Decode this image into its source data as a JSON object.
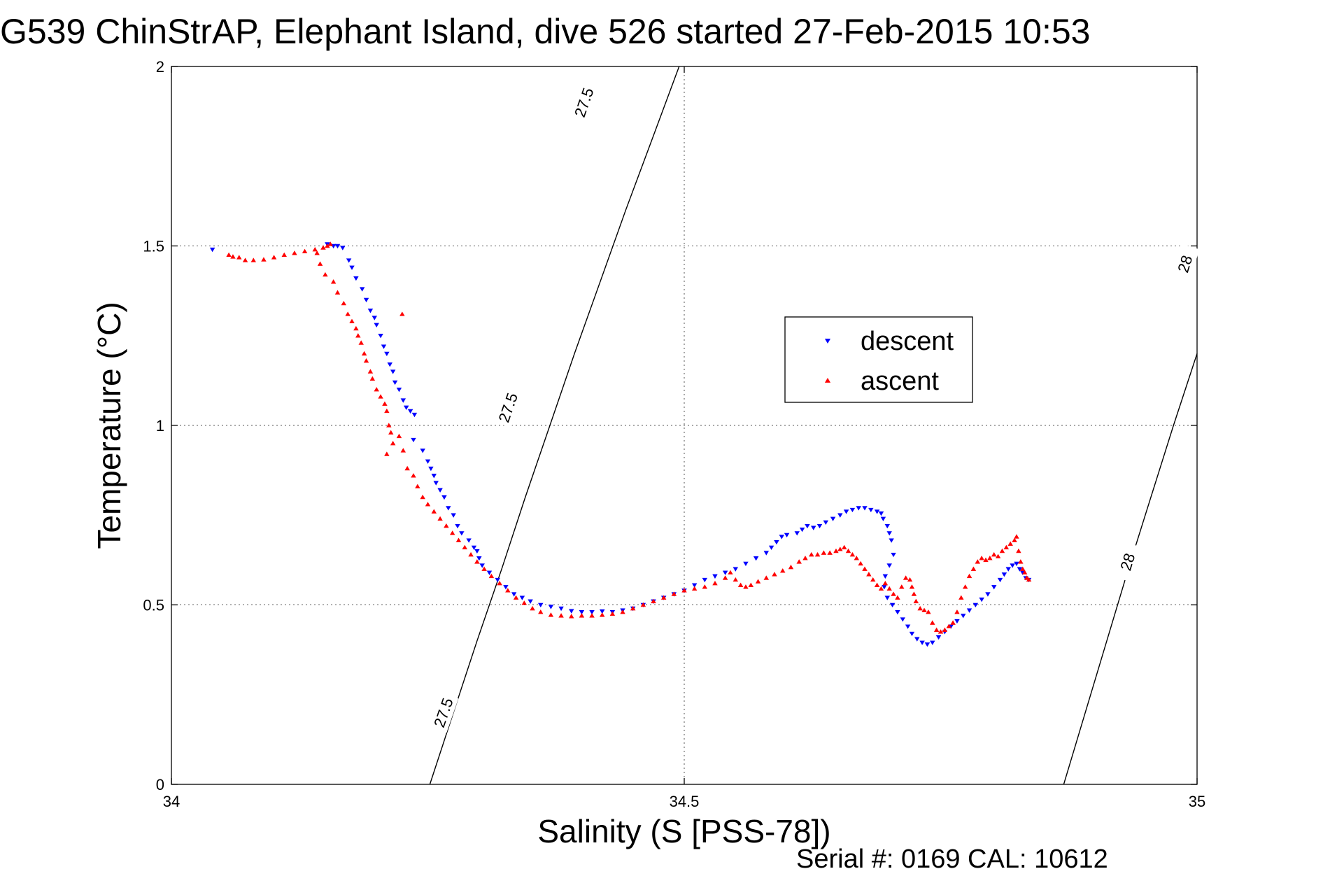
{
  "chart_data": {
    "type": "scatter",
    "title": "G539 ChinStrAP, Elephant Island, dive 526 started 27-Feb-2015 10:53",
    "xlabel": "Salinity (S [PSS-78])",
    "ylabel": "Temperature (°C)",
    "xlim": [
      34,
      35
    ],
    "ylim": [
      0,
      2
    ],
    "xticks": [
      34,
      34.5,
      35
    ],
    "xtick_labels": [
      "34",
      "34.5",
      "35"
    ],
    "yticks": [
      0,
      0.5,
      1,
      1.5,
      2
    ],
    "ytick_labels": [
      "0",
      "0.5",
      "1",
      "1.5",
      "2"
    ],
    "grid": true,
    "legend_position": "upper-right-center",
    "footer": "Serial #: 0169 CAL: 10612",
    "contours": [
      {
        "label": "27.5",
        "points": [
          [
            34.252,
            0.0
          ],
          [
            34.275,
            0.2
          ],
          [
            34.298,
            0.4
          ],
          [
            34.322,
            0.6
          ],
          [
            34.345,
            0.8
          ],
          [
            34.369,
            1.0
          ],
          [
            34.393,
            1.2
          ],
          [
            34.418,
            1.4
          ],
          [
            34.443,
            1.6
          ],
          [
            34.469,
            1.8
          ],
          [
            34.495,
            2.0
          ]
        ],
        "label_positions": [
          [
            34.265,
            0.2
          ],
          [
            34.328,
            1.05
          ],
          [
            34.402,
            1.9
          ]
        ]
      },
      {
        "label": "28",
        "points": [
          [
            34.87,
            0.0
          ],
          [
            34.891,
            0.2
          ],
          [
            34.912,
            0.4
          ],
          [
            34.933,
            0.6
          ],
          [
            34.955,
            0.8
          ],
          [
            34.977,
            1.0
          ],
          [
            35.0,
            1.2
          ]
        ],
        "label_positions": [
          [
            34.932,
            0.62
          ],
          [
            34.988,
            1.45
          ]
        ]
      }
    ],
    "series": [
      {
        "name": "descent",
        "marker": "triangle-down",
        "color": "#0000ff",
        "points": [
          [
            34.04,
            1.49
          ],
          [
            34.152,
            1.505
          ],
          [
            34.158,
            1.5
          ],
          [
            34.162,
            1.5
          ],
          [
            34.167,
            1.495
          ],
          [
            34.173,
            1.46
          ],
          [
            34.176,
            1.44
          ],
          [
            34.18,
            1.41
          ],
          [
            34.186,
            1.38
          ],
          [
            34.19,
            1.35
          ],
          [
            34.194,
            1.32
          ],
          [
            34.198,
            1.3
          ],
          [
            34.2,
            1.28
          ],
          [
            34.204,
            1.25
          ],
          [
            34.207,
            1.22
          ],
          [
            34.21,
            1.2
          ],
          [
            34.213,
            1.17
          ],
          [
            34.216,
            1.15
          ],
          [
            34.218,
            1.12
          ],
          [
            34.222,
            1.1
          ],
          [
            34.226,
            1.07
          ],
          [
            34.229,
            1.05
          ],
          [
            34.233,
            1.04
          ],
          [
            34.237,
            1.03
          ],
          [
            34.236,
            0.96
          ],
          [
            34.245,
            0.93
          ],
          [
            34.25,
            0.9
          ],
          [
            34.253,
            0.88
          ],
          [
            34.256,
            0.86
          ],
          [
            34.258,
            0.84
          ],
          [
            34.262,
            0.82
          ],
          [
            34.266,
            0.8
          ],
          [
            34.27,
            0.77
          ],
          [
            34.275,
            0.75
          ],
          [
            34.279,
            0.72
          ],
          [
            34.283,
            0.7
          ],
          [
            34.29,
            0.68
          ],
          [
            34.295,
            0.66
          ],
          [
            34.298,
            0.65
          ],
          [
            34.3,
            0.63
          ],
          [
            34.303,
            0.61
          ],
          [
            34.31,
            0.59
          ],
          [
            34.318,
            0.57
          ],
          [
            34.326,
            0.55
          ],
          [
            34.334,
            0.53
          ],
          [
            34.342,
            0.52
          ],
          [
            34.35,
            0.51
          ],
          [
            34.36,
            0.5
          ],
          [
            34.37,
            0.495
          ],
          [
            34.38,
            0.49
          ],
          [
            34.39,
            0.483
          ],
          [
            34.4,
            0.48
          ],
          [
            34.41,
            0.48
          ],
          [
            34.42,
            0.482
          ],
          [
            34.43,
            0.48
          ],
          [
            34.44,
            0.485
          ],
          [
            34.45,
            0.49
          ],
          [
            34.46,
            0.5
          ],
          [
            34.47,
            0.51
          ],
          [
            34.48,
            0.52
          ],
          [
            34.49,
            0.53
          ],
          [
            34.5,
            0.54
          ],
          [
            34.51,
            0.555
          ],
          [
            34.52,
            0.57
          ],
          [
            34.53,
            0.58
          ],
          [
            34.54,
            0.59
          ],
          [
            34.55,
            0.6
          ],
          [
            34.56,
            0.615
          ],
          [
            34.57,
            0.63
          ],
          [
            34.58,
            0.645
          ],
          [
            34.585,
            0.66
          ],
          [
            34.59,
            0.675
          ],
          [
            34.595,
            0.69
          ],
          [
            34.6,
            0.695
          ],
          [
            34.61,
            0.7
          ],
          [
            34.615,
            0.71
          ],
          [
            34.62,
            0.72
          ],
          [
            34.626,
            0.715
          ],
          [
            34.632,
            0.72
          ],
          [
            34.638,
            0.73
          ],
          [
            34.645,
            0.74
          ],
          [
            34.652,
            0.75
          ],
          [
            34.658,
            0.76
          ],
          [
            34.664,
            0.765
          ],
          [
            34.67,
            0.77
          ],
          [
            34.676,
            0.77
          ],
          [
            34.682,
            0.765
          ],
          [
            34.688,
            0.76
          ],
          [
            34.692,
            0.755
          ],
          [
            34.694,
            0.74
          ],
          [
            34.698,
            0.72
          ],
          [
            34.7,
            0.7
          ],
          [
            34.702,
            0.68
          ],
          [
            34.704,
            0.64
          ],
          [
            34.7,
            0.61
          ],
          [
            34.696,
            0.58
          ],
          [
            34.695,
            0.55
          ],
          [
            34.698,
            0.52
          ],
          [
            34.703,
            0.5
          ],
          [
            34.708,
            0.48
          ],
          [
            34.713,
            0.46
          ],
          [
            34.718,
            0.44
          ],
          [
            34.722,
            0.42
          ],
          [
            34.727,
            0.405
          ],
          [
            34.732,
            0.395
          ],
          [
            34.737,
            0.39
          ],
          [
            34.742,
            0.395
          ],
          [
            34.748,
            0.41
          ],
          [
            34.754,
            0.425
          ],
          [
            34.76,
            0.44
          ],
          [
            34.766,
            0.455
          ],
          [
            34.772,
            0.47
          ],
          [
            34.778,
            0.485
          ],
          [
            34.784,
            0.5
          ],
          [
            34.79,
            0.515
          ],
          [
            34.796,
            0.53
          ],
          [
            34.802,
            0.55
          ],
          [
            34.808,
            0.57
          ],
          [
            34.812,
            0.585
          ],
          [
            34.816,
            0.6
          ],
          [
            34.82,
            0.61
          ],
          [
            34.824,
            0.615
          ],
          [
            34.827,
            0.6
          ],
          [
            34.83,
            0.59
          ],
          [
            34.833,
            0.575
          ],
          [
            34.836,
            0.57
          ]
        ]
      },
      {
        "name": "ascent",
        "marker": "triangle-up",
        "color": "#ff0000",
        "points": [
          [
            34.056,
            1.475
          ],
          [
            34.06,
            1.47
          ],
          [
            34.066,
            1.468
          ],
          [
            34.072,
            1.46
          ],
          [
            34.08,
            1.46
          ],
          [
            34.09,
            1.462
          ],
          [
            34.1,
            1.468
          ],
          [
            34.11,
            1.475
          ],
          [
            34.12,
            1.48
          ],
          [
            34.13,
            1.485
          ],
          [
            34.14,
            1.49
          ],
          [
            34.148,
            1.495
          ],
          [
            34.152,
            1.5
          ],
          [
            34.155,
            1.505
          ],
          [
            34.142,
            1.48
          ],
          [
            34.145,
            1.45
          ],
          [
            34.15,
            1.42
          ],
          [
            34.158,
            1.4
          ],
          [
            34.162,
            1.37
          ],
          [
            34.168,
            1.34
          ],
          [
            34.172,
            1.31
          ],
          [
            34.176,
            1.29
          ],
          [
            34.18,
            1.27
          ],
          [
            34.182,
            1.25
          ],
          [
            34.185,
            1.23
          ],
          [
            34.188,
            1.2
          ],
          [
            34.19,
            1.18
          ],
          [
            34.194,
            1.15
          ],
          [
            34.196,
            1.13
          ],
          [
            34.2,
            1.1
          ],
          [
            34.204,
            1.08
          ],
          [
            34.208,
            1.06
          ],
          [
            34.21,
            1.04
          ],
          [
            34.212,
            1.0
          ],
          [
            34.214,
            0.98
          ],
          [
            34.216,
            0.95
          ],
          [
            34.21,
            0.92
          ],
          [
            34.226,
            0.93
          ],
          [
            34.225,
            1.31
          ],
          [
            34.222,
            0.97
          ],
          [
            34.23,
            0.88
          ],
          [
            34.236,
            0.86
          ],
          [
            34.24,
            0.83
          ],
          [
            34.245,
            0.8
          ],
          [
            34.25,
            0.78
          ],
          [
            34.256,
            0.76
          ],
          [
            34.262,
            0.74
          ],
          [
            34.268,
            0.72
          ],
          [
            34.274,
            0.7
          ],
          [
            34.28,
            0.68
          ],
          [
            34.286,
            0.66
          ],
          [
            34.292,
            0.64
          ],
          [
            34.298,
            0.62
          ],
          [
            34.305,
            0.6
          ],
          [
            34.312,
            0.58
          ],
          [
            34.32,
            0.56
          ],
          [
            34.328,
            0.54
          ],
          [
            34.336,
            0.52
          ],
          [
            34.344,
            0.505
          ],
          [
            34.352,
            0.49
          ],
          [
            34.36,
            0.48
          ],
          [
            34.37,
            0.472
          ],
          [
            34.38,
            0.47
          ],
          [
            34.39,
            0.468
          ],
          [
            34.4,
            0.47
          ],
          [
            34.41,
            0.47
          ],
          [
            34.42,
            0.472
          ],
          [
            34.43,
            0.475
          ],
          [
            34.44,
            0.48
          ],
          [
            34.45,
            0.49
          ],
          [
            34.46,
            0.5
          ],
          [
            34.47,
            0.51
          ],
          [
            34.48,
            0.52
          ],
          [
            34.49,
            0.53
          ],
          [
            34.5,
            0.54
          ],
          [
            34.51,
            0.545
          ],
          [
            34.52,
            0.55
          ],
          [
            34.53,
            0.56
          ],
          [
            34.54,
            0.575
          ],
          [
            34.545,
            0.59
          ],
          [
            34.55,
            0.57
          ],
          [
            34.555,
            0.555
          ],
          [
            34.56,
            0.55
          ],
          [
            34.565,
            0.555
          ],
          [
            34.572,
            0.565
          ],
          [
            34.58,
            0.575
          ],
          [
            34.588,
            0.585
          ],
          [
            34.596,
            0.595
          ],
          [
            34.604,
            0.605
          ],
          [
            34.612,
            0.62
          ],
          [
            34.618,
            0.63
          ],
          [
            34.624,
            0.64
          ],
          [
            34.63,
            0.64
          ],
          [
            34.636,
            0.645
          ],
          [
            34.642,
            0.645
          ],
          [
            34.648,
            0.65
          ],
          [
            34.652,
            0.655
          ],
          [
            34.656,
            0.66
          ],
          [
            34.66,
            0.65
          ],
          [
            34.664,
            0.64
          ],
          [
            34.668,
            0.63
          ],
          [
            34.672,
            0.615
          ],
          [
            34.676,
            0.6
          ],
          [
            34.68,
            0.585
          ],
          [
            34.684,
            0.57
          ],
          [
            34.688,
            0.555
          ],
          [
            34.692,
            0.545
          ],
          [
            34.696,
            0.56
          ],
          [
            34.7,
            0.545
          ],
          [
            34.704,
            0.53
          ],
          [
            34.708,
            0.52
          ],
          [
            34.712,
            0.55
          ],
          [
            34.716,
            0.575
          ],
          [
            34.72,
            0.57
          ],
          [
            34.722,
            0.55
          ],
          [
            34.724,
            0.53
          ],
          [
            34.726,
            0.51
          ],
          [
            34.73,
            0.49
          ],
          [
            34.734,
            0.485
          ],
          [
            34.738,
            0.48
          ],
          [
            34.742,
            0.45
          ],
          [
            34.746,
            0.43
          ],
          [
            34.75,
            0.425
          ],
          [
            34.754,
            0.43
          ],
          [
            34.758,
            0.44
          ],
          [
            34.762,
            0.45
          ],
          [
            34.766,
            0.48
          ],
          [
            34.77,
            0.52
          ],
          [
            34.774,
            0.55
          ],
          [
            34.778,
            0.58
          ],
          [
            34.782,
            0.6
          ],
          [
            34.786,
            0.62
          ],
          [
            34.79,
            0.63
          ],
          [
            34.794,
            0.625
          ],
          [
            34.798,
            0.63
          ],
          [
            34.802,
            0.64
          ],
          [
            34.806,
            0.635
          ],
          [
            34.81,
            0.65
          ],
          [
            34.814,
            0.66
          ],
          [
            34.818,
            0.67
          ],
          [
            34.822,
            0.68
          ],
          [
            34.824,
            0.69
          ],
          [
            34.826,
            0.65
          ],
          [
            34.828,
            0.62
          ],
          [
            34.83,
            0.6
          ],
          [
            34.832,
            0.59
          ],
          [
            34.834,
            0.575
          ],
          [
            34.836,
            0.57
          ]
        ]
      }
    ]
  }
}
